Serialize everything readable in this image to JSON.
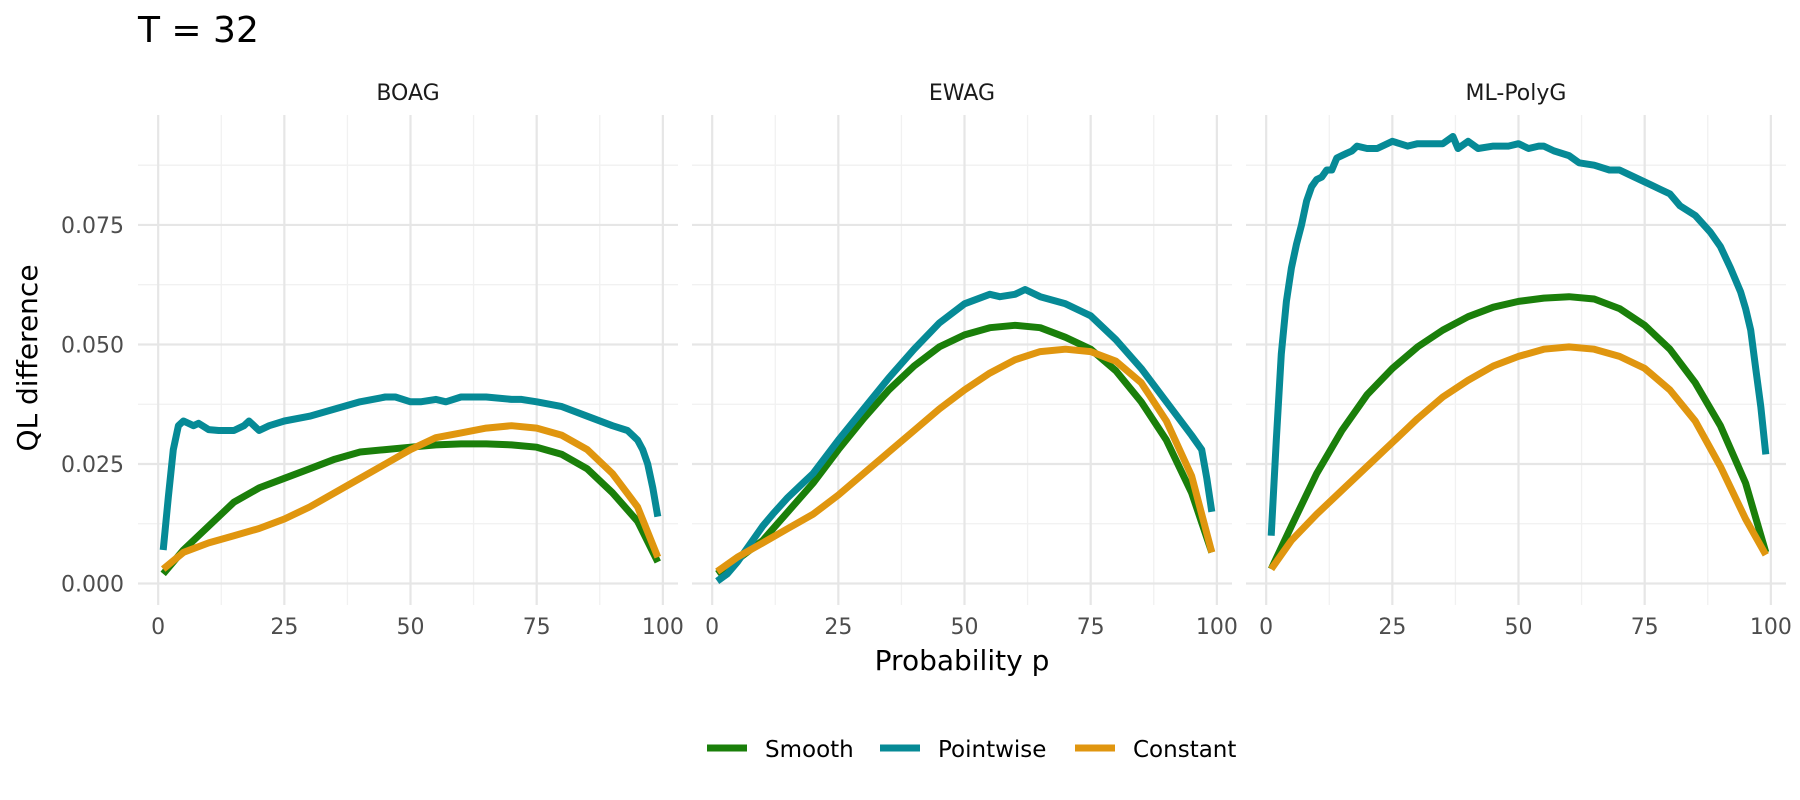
{
  "chart_data": {
    "type": "line",
    "title": "T =  32",
    "xlabel": "Probability p",
    "ylabel": "QL difference",
    "xlim": [
      -4,
      103
    ],
    "ylim": [
      -0.0045,
      0.098
    ],
    "x_ticks": [
      0,
      25,
      50,
      75,
      100
    ],
    "x_tick_labels": [
      "0",
      "25",
      "50",
      "75",
      "100"
    ],
    "y_ticks": [
      0.0,
      0.025,
      0.05,
      0.075
    ],
    "y_tick_labels": [
      "0.000",
      "0.025",
      "0.050",
      "0.075"
    ],
    "grid": true,
    "legend_position": "bottom",
    "series_colors": {
      "Smooth": "#1a7f0a",
      "Pointwise": "#068a96",
      "Constant": "#e0960f"
    },
    "legend": [
      "Smooth",
      "Pointwise",
      "Constant"
    ],
    "panels": [
      {
        "name": "BOAG",
        "series": [
          {
            "name": "Smooth",
            "x": [
              1,
              5,
              10,
              15,
              20,
              25,
              30,
              35,
              40,
              45,
              50,
              55,
              60,
              65,
              70,
              75,
              80,
              85,
              90,
              95,
              99
            ],
            "y": [
              0.002,
              0.007,
              0.012,
              0.017,
              0.02,
              0.022,
              0.024,
              0.026,
              0.0275,
              0.028,
              0.0285,
              0.029,
              0.0292,
              0.0292,
              0.029,
              0.0285,
              0.027,
              0.024,
              0.019,
              0.013,
              0.0045
            ]
          },
          {
            "name": "Pointwise",
            "x": [
              1,
              2,
              3,
              4,
              5,
              6,
              7,
              8,
              10,
              12,
              15,
              17,
              18,
              20,
              22,
              25,
              30,
              35,
              40,
              45,
              47,
              50,
              52,
              55,
              57,
              60,
              65,
              70,
              72,
              75,
              80,
              85,
              90,
              93,
              95,
              96,
              97,
              98,
              99
            ],
            "y": [
              0.007,
              0.018,
              0.028,
              0.033,
              0.034,
              0.0335,
              0.033,
              0.0335,
              0.0322,
              0.032,
              0.032,
              0.033,
              0.034,
              0.032,
              0.033,
              0.034,
              0.035,
              0.0365,
              0.038,
              0.039,
              0.039,
              0.038,
              0.038,
              0.0385,
              0.038,
              0.039,
              0.039,
              0.0385,
              0.0385,
              0.038,
              0.037,
              0.035,
              0.033,
              0.032,
              0.03,
              0.028,
              0.025,
              0.02,
              0.014
            ]
          },
          {
            "name": "Constant",
            "x": [
              1,
              5,
              10,
              15,
              20,
              25,
              30,
              35,
              40,
              45,
              50,
              55,
              60,
              65,
              70,
              75,
              80,
              85,
              90,
              95,
              99
            ],
            "y": [
              0.003,
              0.0065,
              0.0085,
              0.01,
              0.0115,
              0.0135,
              0.016,
              0.019,
              0.022,
              0.025,
              0.028,
              0.0305,
              0.0315,
              0.0325,
              0.033,
              0.0325,
              0.031,
              0.028,
              0.023,
              0.016,
              0.0055
            ]
          }
        ]
      },
      {
        "name": "EWAG",
        "series": [
          {
            "name": "Smooth",
            "x": [
              1,
              5,
              10,
              15,
              20,
              25,
              30,
              35,
              40,
              45,
              50,
              55,
              60,
              65,
              70,
              75,
              80,
              85,
              90,
              95,
              99
            ],
            "y": [
              0.002,
              0.005,
              0.009,
              0.015,
              0.021,
              0.028,
              0.0345,
              0.0405,
              0.0455,
              0.0495,
              0.052,
              0.0535,
              0.054,
              0.0535,
              0.0515,
              0.049,
              0.0445,
              0.038,
              0.03,
              0.019,
              0.0065
            ]
          },
          {
            "name": "Pointwise",
            "x": [
              1,
              3,
              5,
              8,
              10,
              12,
              15,
              18,
              20,
              25,
              30,
              35,
              40,
              45,
              50,
              55,
              57,
              60,
              62,
              65,
              70,
              73,
              75,
              80,
              85,
              90,
              95,
              97,
              98,
              99
            ],
            "y": [
              0.0005,
              0.002,
              0.0045,
              0.009,
              0.012,
              0.0145,
              0.018,
              0.021,
              0.023,
              0.03,
              0.0365,
              0.043,
              0.049,
              0.0545,
              0.0585,
              0.0605,
              0.06,
              0.0605,
              0.0615,
              0.06,
              0.0585,
              0.057,
              0.056,
              0.051,
              0.045,
              0.038,
              0.031,
              0.028,
              0.022,
              0.015
            ]
          },
          {
            "name": "Constant",
            "x": [
              1,
              5,
              10,
              15,
              20,
              25,
              30,
              35,
              40,
              45,
              50,
              55,
              60,
              65,
              70,
              75,
              80,
              85,
              90,
              95,
              99
            ],
            "y": [
              0.0025,
              0.0055,
              0.0085,
              0.0115,
              0.0145,
              0.0185,
              0.023,
              0.0275,
              0.032,
              0.0365,
              0.0405,
              0.044,
              0.0468,
              0.0485,
              0.049,
              0.0485,
              0.0465,
              0.042,
              0.034,
              0.0225,
              0.0065
            ]
          }
        ]
      },
      {
        "name": "ML-PolyG",
        "series": [
          {
            "name": "Smooth",
            "x": [
              1,
              5,
              10,
              15,
              20,
              25,
              30,
              35,
              40,
              45,
              50,
              55,
              60,
              65,
              70,
              75,
              80,
              85,
              90,
              95,
              99
            ],
            "y": [
              0.003,
              0.012,
              0.023,
              0.032,
              0.0395,
              0.045,
              0.0495,
              0.053,
              0.0558,
              0.0578,
              0.059,
              0.0597,
              0.06,
              0.0595,
              0.0575,
              0.054,
              0.049,
              0.042,
              0.033,
              0.021,
              0.0065
            ]
          },
          {
            "name": "Pointwise",
            "x": [
              1,
              2,
              3,
              4,
              5,
              6,
              7,
              8,
              9,
              10,
              11,
              12,
              13,
              14,
              15,
              16,
              17,
              18,
              20,
              22,
              25,
              28,
              30,
              32,
              35,
              37,
              38,
              40,
              42,
              45,
              48,
              50,
              52,
              54,
              55,
              57,
              60,
              62,
              65,
              68,
              70,
              72,
              75,
              78,
              80,
              82,
              85,
              88,
              90,
              92,
              94,
              95,
              96,
              97,
              98,
              99
            ],
            "y": [
              0.01,
              0.03,
              0.048,
              0.059,
              0.066,
              0.071,
              0.075,
              0.08,
              0.083,
              0.0845,
              0.085,
              0.0865,
              0.0865,
              0.089,
              0.0895,
              0.09,
              0.0905,
              0.0915,
              0.091,
              0.091,
              0.0925,
              0.0915,
              0.092,
              0.092,
              0.092,
              0.0935,
              0.091,
              0.0925,
              0.091,
              0.0915,
              0.0915,
              0.092,
              0.091,
              0.0915,
              0.0915,
              0.0905,
              0.0895,
              0.088,
              0.0875,
              0.0865,
              0.0865,
              0.0855,
              0.084,
              0.0825,
              0.0815,
              0.079,
              0.077,
              0.0735,
              0.0705,
              0.066,
              0.061,
              0.0575,
              0.053,
              0.045,
              0.037,
              0.027
            ]
          },
          {
            "name": "Constant",
            "x": [
              1,
              5,
              10,
              15,
              20,
              25,
              30,
              35,
              40,
              45,
              50,
              55,
              60,
              65,
              70,
              75,
              80,
              85,
              90,
              95,
              99
            ],
            "y": [
              0.003,
              0.009,
              0.0145,
              0.0195,
              0.0245,
              0.0295,
              0.0345,
              0.039,
              0.0425,
              0.0455,
              0.0475,
              0.049,
              0.0495,
              0.049,
              0.0475,
              0.045,
              0.0405,
              0.034,
              0.0245,
              0.0135,
              0.006
            ]
          }
        ]
      }
    ]
  }
}
